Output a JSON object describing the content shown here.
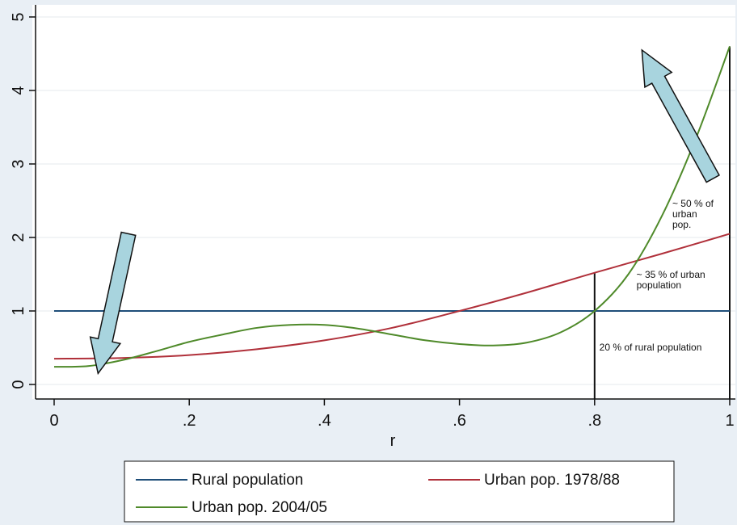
{
  "chart_data": {
    "type": "line",
    "xlabel": "r",
    "ylabel": "",
    "xlim": [
      0,
      1
    ],
    "ylim": [
      0,
      5
    ],
    "x_ticks": [
      {
        "value": 0,
        "label": "0"
      },
      {
        "value": 0.2,
        "label": ".2"
      },
      {
        "value": 0.4,
        "label": ".4"
      },
      {
        "value": 0.6,
        "label": ".6"
      },
      {
        "value": 0.8,
        "label": ".8"
      },
      {
        "value": 1,
        "label": "1"
      }
    ],
    "y_ticks": [
      {
        "value": 0,
        "label": "0"
      },
      {
        "value": 1,
        "label": "1"
      },
      {
        "value": 2,
        "label": "2"
      },
      {
        "value": 3,
        "label": "3"
      },
      {
        "value": 4,
        "label": "4"
      },
      {
        "value": 5,
        "label": "5"
      }
    ],
    "grid": true,
    "legend_position": "bottom",
    "series": [
      {
        "name": "Rural population",
        "color": "#1f4e79",
        "points": [
          [
            0,
            1
          ],
          [
            1,
            1
          ]
        ]
      },
      {
        "name": "Urban pop. 1978/88",
        "color": "#b0303a",
        "points": [
          [
            0,
            0.35
          ],
          [
            0.1,
            0.36
          ],
          [
            0.2,
            0.4
          ],
          [
            0.3,
            0.48
          ],
          [
            0.4,
            0.6
          ],
          [
            0.5,
            0.77
          ],
          [
            0.6,
            1.0
          ],
          [
            0.7,
            1.25
          ],
          [
            0.8,
            1.52
          ],
          [
            0.9,
            1.78
          ],
          [
            1.0,
            2.05
          ]
        ]
      },
      {
        "name": "Urban pop. 2004/05",
        "color": "#4f8a2a",
        "points": [
          [
            0,
            0.24
          ],
          [
            0.05,
            0.25
          ],
          [
            0.1,
            0.33
          ],
          [
            0.15,
            0.45
          ],
          [
            0.2,
            0.58
          ],
          [
            0.25,
            0.68
          ],
          [
            0.3,
            0.77
          ],
          [
            0.35,
            0.81
          ],
          [
            0.4,
            0.81
          ],
          [
            0.45,
            0.76
          ],
          [
            0.5,
            0.68
          ],
          [
            0.55,
            0.6
          ],
          [
            0.6,
            0.55
          ],
          [
            0.65,
            0.53
          ],
          [
            0.7,
            0.57
          ],
          [
            0.75,
            0.71
          ],
          [
            0.8,
            1.0
          ],
          [
            0.85,
            1.5
          ],
          [
            0.9,
            2.3
          ],
          [
            0.95,
            3.35
          ],
          [
            1.0,
            4.6
          ]
        ]
      }
    ],
    "vertical_lines": [
      {
        "x": 0.8,
        "y_top": 1.52
      },
      {
        "x": 1.0,
        "y_top": 4.6
      }
    ],
    "annotations": [
      {
        "lines": [
          "~ 50 % of",
          "urban",
          "pop."
        ],
        "x": 0.915,
        "y": 2.42
      },
      {
        "lines": [
          "~ 35 % of urban",
          "population"
        ],
        "x": 0.862,
        "y": 1.45
      },
      {
        "lines": [
          "20 % of rural population"
        ],
        "x": 0.807,
        "y": 0.46
      }
    ],
    "arrows": [
      {
        "from": [
          0.11,
          2.05
        ],
        "to": [
          0.065,
          0.15
        ],
        "color": "#a8d4de"
      },
      {
        "from": [
          0.975,
          2.8
        ],
        "to": [
          0.87,
          4.55
        ],
        "color": "#a8d4de"
      }
    ]
  }
}
